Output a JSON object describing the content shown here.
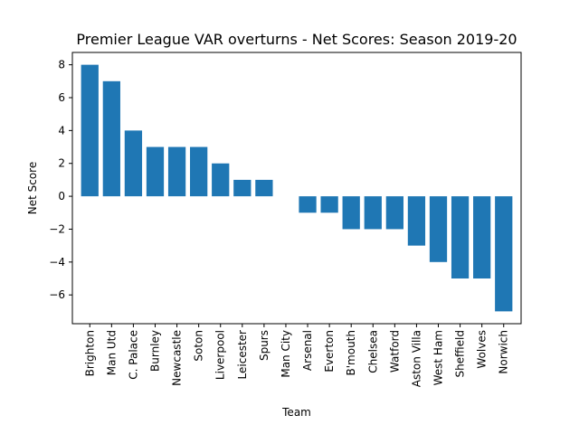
{
  "chart_data": {
    "type": "bar",
    "title": "Premier League VAR overturns - Net Scores: Season 2019-20",
    "xlabel": "Team",
    "ylabel": "Net Score",
    "categories": [
      "Brighton",
      "Man Utd",
      "C. Palace",
      "Burnley",
      "Newcastle",
      "Soton",
      "Liverpool",
      "Leicester",
      "Spurs",
      "Man City",
      "Arsenal",
      "Everton",
      "B'mouth",
      "Chelsea",
      "Watford",
      "Aston Villa",
      "West Ham",
      "Sheffield",
      "Wolves",
      "Norwich"
    ],
    "values": [
      8,
      7,
      4,
      3,
      3,
      3,
      2,
      1,
      1,
      0,
      -1,
      -1,
      -2,
      -2,
      -2,
      -3,
      -4,
      -5,
      -5,
      -7
    ],
    "ylim": [
      -7.75,
      8.75
    ],
    "yticks": [
      -6,
      -4,
      -2,
      0,
      2,
      4,
      6,
      8
    ],
    "ytick_labels": [
      "−6",
      "−4",
      "−2",
      "0",
      "2",
      "4",
      "6",
      "8"
    ],
    "bar_color": "#1f77b4",
    "grid": false
  }
}
